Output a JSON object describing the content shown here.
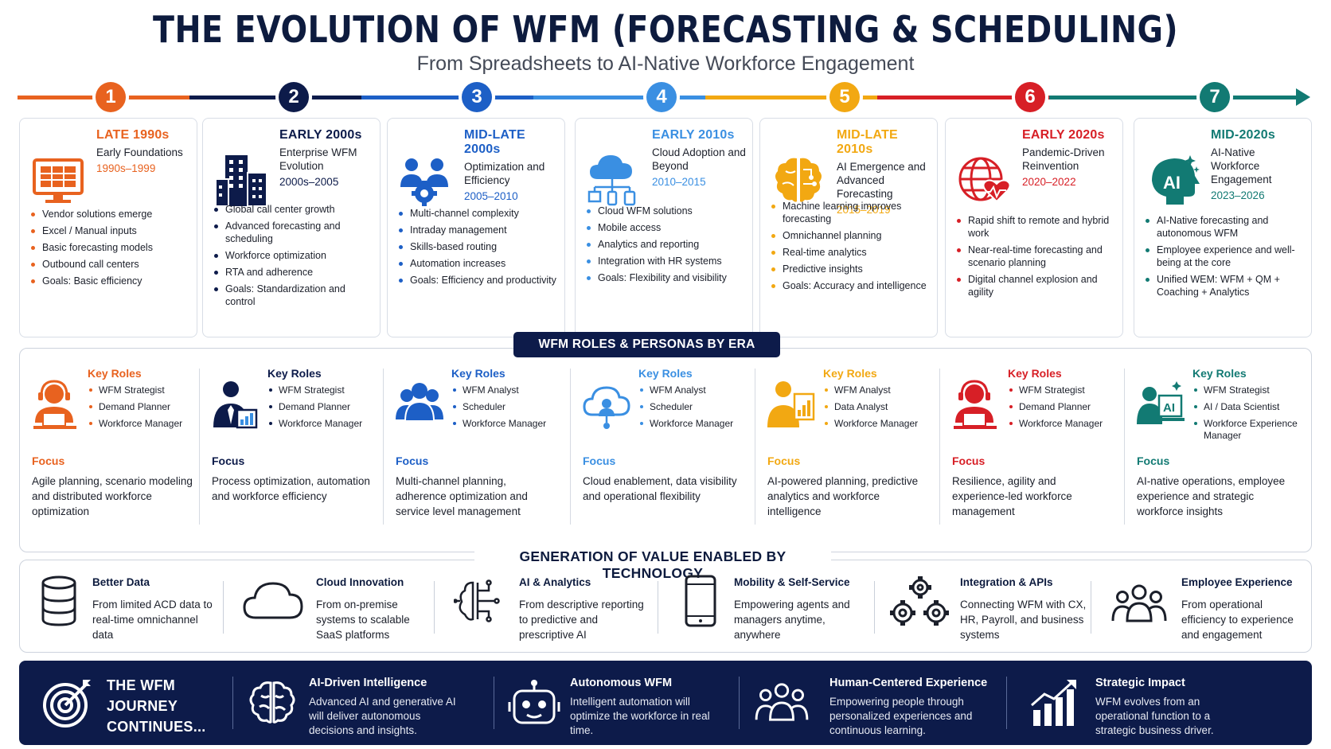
{
  "title": "THE EVOLUTION OF WFM (FORECASTING & SCHEDULING)",
  "subtitle": "From Spreadsheets to AI-Native Workforce Engagement",
  "eras": [
    {
      "num": "1",
      "period": "LATE 1990s",
      "label": "Early Foundations",
      "years": "1990s–1999",
      "color": "#e8621f",
      "items": [
        "Vendor solutions emerge",
        "Excel / Manual inputs",
        "Basic forecasting models",
        "Outbound call centers",
        "Goals: Basic efficiency"
      ]
    },
    {
      "num": "2",
      "period": "EARLY 2000s",
      "label": "Enterprise WFM Evolution",
      "years": "2000s–2005",
      "color": "#0d1b4a",
      "items": [
        "Global call center growth",
        "Advanced forecasting and scheduling",
        "Workforce optimization",
        "RTA and adherence",
        "Goals: Standardization and control"
      ]
    },
    {
      "num": "3",
      "period": "MID-LATE 2000s",
      "label": "Optimization and Efficiency",
      "years": "2005–2010",
      "color": "#1d5fc6",
      "items": [
        "Multi-channel complexity",
        "Intraday management",
        "Skills-based routing",
        "Automation increases",
        "Goals: Efficiency and productivity"
      ]
    },
    {
      "num": "4",
      "period": "EARLY 2010s",
      "label": "Cloud Adoption and Beyond",
      "years": "2010–2015",
      "color": "#3a8fe2",
      "items": [
        "Cloud WFM solutions",
        "Mobile access",
        "Analytics and reporting",
        "Integration with HR systems",
        "Goals: Flexibility and visibility"
      ]
    },
    {
      "num": "5",
      "period": "MID-LATE 2010s",
      "label": "AI Emergence and Advanced Forecasting",
      "years": "2015–2019",
      "color": "#f2a812",
      "items": [
        "Machine learning improves forecasting",
        "Omnichannel planning",
        "Real-time analytics",
        "Predictive insights",
        "Goals: Accuracy and intelligence"
      ]
    },
    {
      "num": "6",
      "period": "EARLY 2020s",
      "label": "Pandemic-Driven Reinvention",
      "years": "2020–2022",
      "color": "#d71f26",
      "items": [
        "Rapid shift to remote and hybrid work",
        "Near-real-time forecasting and scenario planning",
        "Digital channel explosion and agility"
      ]
    },
    {
      "num": "7",
      "period": "MID-2020s",
      "label": "AI-Native Workforce Engagement",
      "years": "2023–2026",
      "color": "#127a73",
      "items": [
        "AI-Native forecasting and autonomous WFM",
        "Employee experience and well-being at the core",
        "Unified WEM: WFM + QM + Coaching + Analytics"
      ]
    }
  ],
  "roles_banner": "WFM ROLES & PERSONAS BY ERA",
  "roles": [
    {
      "key_label": "Key Roles",
      "items": [
        "WFM Strategist",
        "Demand Planner",
        "Workforce Manager"
      ],
      "focus_label": "Focus",
      "focus": "Agile planning, scenario modeling and distributed workforce optimization"
    },
    {
      "key_label": "Key Roles",
      "items": [
        "WFM Strategist",
        "Demand Planner",
        "Workforce Manager"
      ],
      "focus_label": "Focus",
      "focus": "Process optimization, automation and workforce efficiency"
    },
    {
      "key_label": "Key Roles",
      "items": [
        "WFM Analyst",
        "Scheduler",
        "Workforce Manager"
      ],
      "focus_label": "Focus",
      "focus": "Multi-channel planning, adherence optimization and service level management"
    },
    {
      "key_label": "Key Roles",
      "items": [
        "WFM Analyst",
        "Scheduler",
        "Workforce Manager"
      ],
      "focus_label": "Focus",
      "focus": "Cloud enablement, data visibility and operational flexibility"
    },
    {
      "key_label": "Key Roles",
      "items": [
        "WFM Analyst",
        "Data Analyst",
        "Workforce Manager"
      ],
      "focus_label": "Focus",
      "focus": "AI-powered planning, predictive analytics and workforce intelligence"
    },
    {
      "key_label": "Key Roles",
      "items": [
        "WFM Strategist",
        "Demand Planner",
        "Workforce Manager"
      ],
      "focus_label": "Focus",
      "focus": "Resilience, agility and experience-led workforce management"
    },
    {
      "key_label": "Key Roles",
      "items": [
        "WFM Strategist",
        "AI / Data Scientist",
        "Workforce Experience Manager"
      ],
      "focus_label": "Focus",
      "focus": "AI-native operations, employee experience and strategic workforce insights"
    }
  ],
  "value_title": "GENERATION OF VALUE ENABLED BY TECHNOLOGY",
  "values": [
    {
      "title": "Better Data",
      "desc": "From limited ACD data to real-time omnichannel data",
      "icon": "database-icon"
    },
    {
      "title": "Cloud Innovation",
      "desc": "From on-premise systems to scalable SaaS platforms",
      "icon": "cloud-icon"
    },
    {
      "title": "AI & Analytics",
      "desc": "From descriptive reporting to predictive and prescriptive AI",
      "icon": "circuit-icon"
    },
    {
      "title": "Mobility & Self-Service",
      "desc": "Empowering agents and managers anytime, anywhere",
      "icon": "smartphone-icon"
    },
    {
      "title": "Integration & APIs",
      "desc": "Connecting WFM with CX, HR, Payroll, and business systems",
      "icon": "gears-icon"
    },
    {
      "title": "Employee Experience",
      "desc": "From operational efficiency to experience and engagement",
      "icon": "people-icon"
    }
  ],
  "footer": {
    "journey": [
      "THE WFM",
      "JOURNEY",
      "CONTINUES..."
    ],
    "items": [
      {
        "title": "AI-Driven Intelligence",
        "desc": "Advanced AI and generative AI will deliver autonomous decisions and insights."
      },
      {
        "title": "Autonomous WFM",
        "desc": "Intelligent automation will optimize the workforce in real time."
      },
      {
        "title": "Human-Centered Experience",
        "desc": "Empowering people through personalized experiences and continuous learning."
      },
      {
        "title": "Strategic Impact",
        "desc": "WFM evolves from an operational function to a strategic business driver."
      }
    ]
  }
}
